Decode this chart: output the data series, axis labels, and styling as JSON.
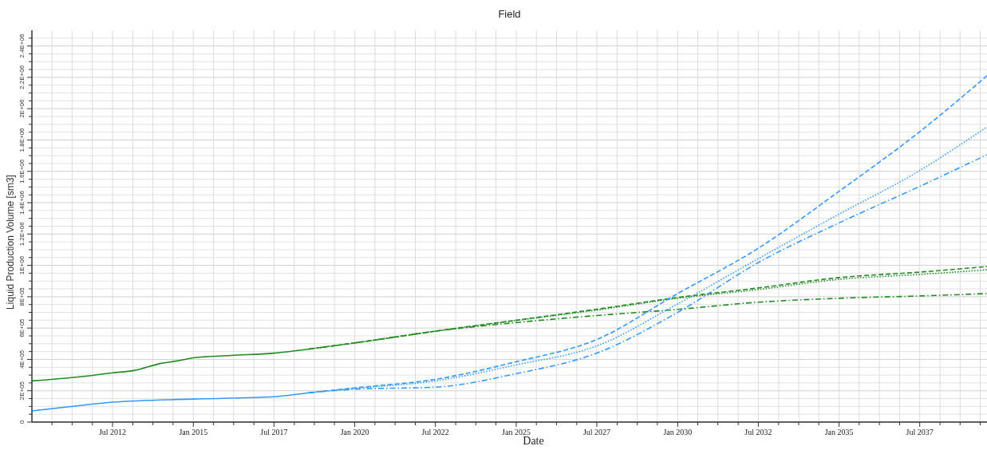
{
  "chart_data": {
    "type": "line",
    "title": "Field",
    "xlabel": "Date",
    "ylabel": "Liquid Production Volume [sm3]",
    "grid": true,
    "marker": "none",
    "xlim": [
      "2010-01",
      "2039-08"
    ],
    "xticks": [
      {
        "value": "2010-08-16",
        "label": null
      },
      {
        "value": "2011-04-01",
        "label": null
      },
      {
        "value": "2011-11-16",
        "label": null
      },
      {
        "value": "2012-07-01",
        "label": "Jul 2012"
      },
      {
        "value": "2013-02-16",
        "label": null
      },
      {
        "value": "2013-10-01",
        "label": null
      },
      {
        "value": "2014-05-16",
        "label": null
      },
      {
        "value": "2015-01-01",
        "label": "Jan 2015"
      },
      {
        "value": "2015-08-16",
        "label": null
      },
      {
        "value": "2016-04-01",
        "label": null
      },
      {
        "value": "2016-11-16",
        "label": null
      },
      {
        "value": "2017-07-01",
        "label": "Jul 2017"
      },
      {
        "value": "2018-02-16",
        "label": null
      },
      {
        "value": "2018-10-01",
        "label": null
      },
      {
        "value": "2019-05-16",
        "label": null
      },
      {
        "value": "2020-01-01",
        "label": "Jan 2020"
      },
      {
        "value": "2020-08-16",
        "label": null
      },
      {
        "value": "2021-04-01",
        "label": null
      },
      {
        "value": "2021-11-16",
        "label": null
      },
      {
        "value": "2022-07-01",
        "label": "Jul 2022"
      },
      {
        "value": "2023-02-16",
        "label": null
      },
      {
        "value": "2023-10-01",
        "label": null
      },
      {
        "value": "2024-05-16",
        "label": null
      },
      {
        "value": "2025-01-01",
        "label": "Jan 2025"
      },
      {
        "value": "2025-08-16",
        "label": null
      },
      {
        "value": "2026-04-01",
        "label": null
      },
      {
        "value": "2026-11-16",
        "label": null
      },
      {
        "value": "2027-07-01",
        "label": "Jul 2027"
      },
      {
        "value": "2028-02-16",
        "label": null
      },
      {
        "value": "2028-10-01",
        "label": null
      },
      {
        "value": "2029-05-16",
        "label": null
      },
      {
        "value": "2030-01-01",
        "label": "Jan 2030"
      },
      {
        "value": "2030-08-16",
        "label": null
      },
      {
        "value": "2031-04-01",
        "label": null
      },
      {
        "value": "2031-11-16",
        "label": null
      },
      {
        "value": "2032-07-01",
        "label": "Jul 2032"
      },
      {
        "value": "2033-02-16",
        "label": null
      },
      {
        "value": "2033-10-01",
        "label": null
      },
      {
        "value": "2034-05-16",
        "label": null
      },
      {
        "value": "2035-01-01",
        "label": "Jan 2035"
      },
      {
        "value": "2035-08-16",
        "label": null
      },
      {
        "value": "2036-04-01",
        "label": null
      },
      {
        "value": "2036-11-16",
        "label": null
      },
      {
        "value": "2037-07-01",
        "label": "Jul 2037"
      },
      {
        "value": "2038-02-16",
        "label": null
      },
      {
        "value": "2038-10-01",
        "label": null
      },
      {
        "value": "2039-05-16",
        "label": null
      }
    ],
    "ylim": [
      0,
      2500000
    ],
    "yticks": [
      0,
      {
        "value": 50000,
        "label": null
      },
      {
        "value": 100000,
        "label": null
      },
      {
        "value": 150000,
        "label": null
      },
      {
        "value": 200000,
        "label": "2E+05"
      },
      {
        "value": 250000,
        "label": null
      },
      {
        "value": 300000,
        "label": null
      },
      {
        "value": 350000,
        "label": null
      },
      {
        "value": 400000,
        "label": "4E+05"
      },
      {
        "value": 450000,
        "label": null
      },
      {
        "value": 500000,
        "label": null
      },
      {
        "value": 550000,
        "label": null
      },
      {
        "value": 600000,
        "label": "6E+05"
      },
      {
        "value": 650000,
        "label": null
      },
      {
        "value": 700000,
        "label": null
      },
      {
        "value": 750000,
        "label": null
      },
      {
        "value": 800000,
        "label": "8E+05"
      },
      {
        "value": 850000,
        "label": null
      },
      {
        "value": 900000,
        "label": null
      },
      {
        "value": 950000,
        "label": null
      },
      {
        "value": 1000000,
        "label": "1E+06"
      },
      {
        "value": 1050000,
        "label": null
      },
      {
        "value": 1100000,
        "label": null
      },
      {
        "value": 1150000,
        "label": null
      },
      {
        "value": 1200000,
        "label": "1.2E+06"
      },
      {
        "value": 1250000,
        "label": null
      },
      {
        "value": 1300000,
        "label": null
      },
      {
        "value": 1350000,
        "label": null
      },
      {
        "value": 1400000,
        "label": "1.4E+06"
      },
      {
        "value": 1450000,
        "label": null
      },
      {
        "value": 1500000,
        "label": null
      },
      {
        "value": 1550000,
        "label": null
      },
      {
        "value": 1600000,
        "label": "1.6E+06"
      },
      {
        "value": 1650000,
        "label": null
      },
      {
        "value": 1700000,
        "label": null
      },
      {
        "value": 1750000,
        "label": null
      },
      {
        "value": 1800000,
        "label": "1.8E+06"
      },
      {
        "value": 1850000,
        "label": null
      },
      {
        "value": 1900000,
        "label": null
      },
      {
        "value": 1950000,
        "label": null
      },
      {
        "value": 2000000,
        "label": "2E+06"
      },
      {
        "value": 2050000,
        "label": null
      },
      {
        "value": 2100000,
        "label": null
      },
      {
        "value": 2150000,
        "label": null
      },
      {
        "value": 2200000,
        "label": "2.2E+06"
      },
      {
        "value": 2250000,
        "label": null
      },
      {
        "value": 2300000,
        "label": null
      },
      {
        "value": 2350000,
        "label": null
      },
      {
        "value": 2400000,
        "label": "2.4E+06"
      },
      {
        "value": 2450000,
        "label": null
      }
    ],
    "series": [
      {
        "color": "#228b22",
        "line_style": "solid",
        "x": [
          "2010-01",
          "2011-07",
          "2012-07",
          "2013-03",
          "2014-01",
          "2014-07",
          "2015-01",
          "2016-03",
          "2017-07",
          "2018-08"
        ],
        "values": [
          263000,
          289000,
          314000,
          329000,
          375000,
          390000,
          410000,
          425000,
          440000,
          466000
        ]
      },
      {
        "color": "#3399ff",
        "line_style": "solid",
        "x": [
          "2010-01",
          "2011-07",
          "2012-07",
          "2015-01",
          "2017-07",
          "2018-08"
        ],
        "values": [
          71000,
          106000,
          127000,
          147000,
          162000,
          187000
        ]
      },
      {
        "color": "#228b22",
        "line_style": "dashed",
        "x": [
          "2018-08",
          "2020-01",
          "2022-07",
          "2025-01",
          "2027-07",
          "2030-01",
          "2032-07",
          "2035-01",
          "2037-07",
          "2039-08"
        ],
        "values": [
          466000,
          505000,
          580000,
          650000,
          720000,
          795000,
          856000,
          922000,
          957000,
          992000
        ]
      },
      {
        "color": "#228b22",
        "line_style": "dotted",
        "x": [
          "2018-08",
          "2020-01",
          "2022-07",
          "2025-01",
          "2027-07",
          "2030-01",
          "2032-07",
          "2035-01",
          "2037-07",
          "2039-08"
        ],
        "values": [
          466000,
          505000,
          580000,
          648000,
          715000,
          790000,
          846000,
          911000,
          942000,
          972000
        ]
      },
      {
        "color": "#228b22",
        "line_style": "dashdot",
        "x": [
          "2018-08",
          "2020-01",
          "2022-07",
          "2025-01",
          "2027-07",
          "2030-01",
          "2032-07",
          "2035-01",
          "2037-07",
          "2039-08"
        ],
        "values": [
          466000,
          505000,
          580000,
          635000,
          680000,
          719000,
          765000,
          790000,
          805000,
          820000
        ]
      },
      {
        "color": "#3399ff",
        "line_style": "dashed",
        "x": [
          "2018-08",
          "2020-01",
          "2022-07",
          "2025-01",
          "2027-07",
          "2030-01",
          "2032-07",
          "2035-01",
          "2037-07",
          "2039-08"
        ],
        "values": [
          187000,
          218000,
          273000,
          385000,
          527000,
          820000,
          1109000,
          1473000,
          1853000,
          2210000
        ]
      },
      {
        "color": "#3399ff",
        "line_style": "dotted",
        "x": [
          "2018-08",
          "2020-01",
          "2022-07",
          "2025-01",
          "2027-07",
          "2030-01",
          "2032-07",
          "2035-01",
          "2037-07",
          "2039-08"
        ],
        "values": [
          187000,
          215000,
          263000,
          365000,
          486000,
          754000,
          1043000,
          1327000,
          1605000,
          1884000
        ]
      },
      {
        "color": "#3399ff",
        "line_style": "dashdot",
        "x": [
          "2018-08",
          "2020-01",
          "2022-07",
          "2025-01",
          "2027-07",
          "2030-01",
          "2032-07",
          "2035-01",
          "2037-07",
          "2039-08"
        ],
        "values": [
          187000,
          210000,
          223000,
          309000,
          440000,
          700000,
          1018000,
          1271000,
          1504000,
          1706000
        ]
      }
    ]
  }
}
